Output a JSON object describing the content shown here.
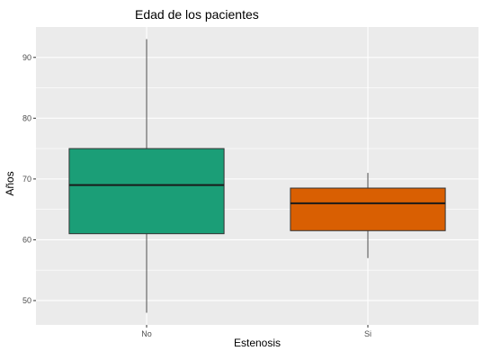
{
  "chart_data": {
    "type": "box",
    "title": "Edad de los pacientes",
    "xlabel": "Estenosis",
    "ylabel": "Años",
    "ylim": [
      46,
      95
    ],
    "yticks": [
      50,
      60,
      70,
      80,
      90
    ],
    "ytick_labels": [
      "50",
      "60",
      "70",
      "80",
      "90"
    ],
    "categories": [
      "No",
      "Si"
    ],
    "boxes": [
      {
        "category": "No",
        "min": 48,
        "q1": 61,
        "median": 69,
        "q3": 75,
        "max": 93,
        "color": "#1b9e77"
      },
      {
        "category": "Si",
        "min": 57,
        "q1": 61.5,
        "median": 66,
        "q3": 68.5,
        "max": 71,
        "color": "#d95f02"
      }
    ],
    "panel_background": "#ebebeb",
    "grid_color": "#ffffff",
    "grid": true,
    "legend": "none"
  }
}
